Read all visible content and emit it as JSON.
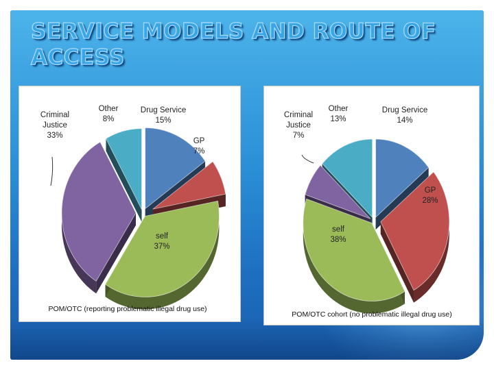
{
  "slide": {
    "title": "SERVICE MODELS AND ROUTE OF ACCESS"
  },
  "colors": {
    "drug_service": "#4f81bd",
    "gp": "#c0504d",
    "self": "#9bbb59",
    "criminal_justice": "#8064a2",
    "other": "#4bacc6"
  },
  "chart_data": [
    {
      "type": "pie",
      "title": "",
      "caption": "POM/OTC (reporting problematic illegal drug use)",
      "categories": [
        "Drug Service",
        "GP",
        "self",
        "Criminal Justice",
        "Other"
      ],
      "values": [
        15,
        7,
        37,
        33,
        8
      ],
      "labels": [
        {
          "name_lines": [
            "Drug Service"
          ],
          "pct": "15%"
        },
        {
          "name_lines": [
            "GP"
          ],
          "pct": "7%"
        },
        {
          "name_lines": [
            "self"
          ],
          "pct": "37%"
        },
        {
          "name_lines": [
            "Criminal",
            "Justice"
          ],
          "pct": "33%"
        },
        {
          "name_lines": [
            "Other"
          ],
          "pct": "8%"
        }
      ]
    },
    {
      "type": "pie",
      "title": "",
      "caption": "POM/OTC cohort (no problematic illegal drug use)",
      "categories": [
        "Drug Service",
        "GP",
        "self",
        "Criminal Justice",
        "Other"
      ],
      "values": [
        14,
        28,
        38,
        7,
        13
      ],
      "labels": [
        {
          "name_lines": [
            "Drug Service"
          ],
          "pct": "14%"
        },
        {
          "name_lines": [
            "GP"
          ],
          "pct": "28%"
        },
        {
          "name_lines": [
            "self"
          ],
          "pct": "38%"
        },
        {
          "name_lines": [
            "Criminal",
            "Justice"
          ],
          "pct": "7%"
        },
        {
          "name_lines": [
            "Other"
          ],
          "pct": "13%"
        }
      ]
    }
  ]
}
